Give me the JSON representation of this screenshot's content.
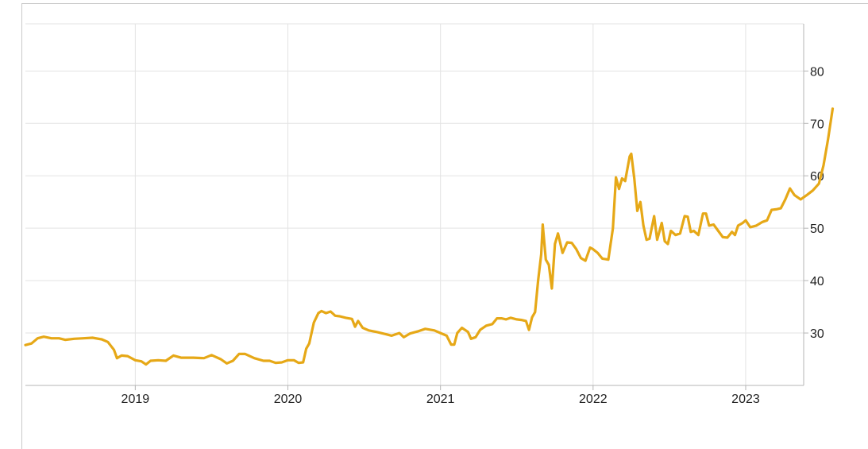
{
  "chart_data": {
    "type": "line",
    "title": "",
    "xlabel": "",
    "ylabel": "",
    "xlim": [
      2018.28,
      2023.38
    ],
    "ylim": [
      20,
      89
    ],
    "x_ticks": [
      2019,
      2020,
      2021,
      2022,
      2023
    ],
    "x_tick_labels": [
      "2019",
      "2020",
      "2021",
      "2022",
      "2023"
    ],
    "y_ticks": [
      30,
      40,
      50,
      60,
      70,
      80
    ],
    "y_tick_labels": [
      "30",
      "40",
      "50",
      "60",
      "70",
      "80"
    ],
    "y_axis_position": "right",
    "grid": true,
    "legend": "none",
    "colors": {
      "line": "#e6a817",
      "grid": "#e3e3e3",
      "axis": "#b5b5b5",
      "frame": "#c9c9c9"
    },
    "series": [
      {
        "values": [
          [
            2018.28,
            27.7
          ],
          [
            2018.32,
            28.0
          ],
          [
            2018.36,
            29.0
          ],
          [
            2018.4,
            29.3
          ],
          [
            2018.45,
            29.0
          ],
          [
            2018.5,
            29.0
          ],
          [
            2018.54,
            28.7
          ],
          [
            2018.6,
            28.9
          ],
          [
            2018.66,
            29.0
          ],
          [
            2018.72,
            29.1
          ],
          [
            2018.78,
            28.8
          ],
          [
            2018.82,
            28.3
          ],
          [
            2018.86,
            26.8
          ],
          [
            2018.88,
            25.2
          ],
          [
            2018.91,
            25.7
          ],
          [
            2018.95,
            25.6
          ],
          [
            2019.0,
            24.8
          ],
          [
            2019.04,
            24.6
          ],
          [
            2019.07,
            24.0
          ],
          [
            2019.1,
            24.7
          ],
          [
            2019.15,
            24.8
          ],
          [
            2019.2,
            24.7
          ],
          [
            2019.25,
            25.7
          ],
          [
            2019.3,
            25.3
          ],
          [
            2019.38,
            25.3
          ],
          [
            2019.45,
            25.2
          ],
          [
            2019.5,
            25.8
          ],
          [
            2019.56,
            25.0
          ],
          [
            2019.6,
            24.2
          ],
          [
            2019.64,
            24.7
          ],
          [
            2019.68,
            26.0
          ],
          [
            2019.72,
            26.0
          ],
          [
            2019.78,
            25.2
          ],
          [
            2019.84,
            24.7
          ],
          [
            2019.88,
            24.7
          ],
          [
            2019.92,
            24.3
          ],
          [
            2019.96,
            24.4
          ],
          [
            2020.0,
            24.8
          ],
          [
            2020.04,
            24.8
          ],
          [
            2020.07,
            24.3
          ],
          [
            2020.1,
            24.4
          ],
          [
            2020.12,
            27.0
          ],
          [
            2020.14,
            28.0
          ],
          [
            2020.17,
            32.0
          ],
          [
            2020.2,
            33.8
          ],
          [
            2020.22,
            34.2
          ],
          [
            2020.25,
            33.8
          ],
          [
            2020.28,
            34.1
          ],
          [
            2020.31,
            33.3
          ],
          [
            2020.34,
            33.2
          ],
          [
            2020.38,
            32.9
          ],
          [
            2020.42,
            32.7
          ],
          [
            2020.44,
            31.2
          ],
          [
            2020.46,
            32.3
          ],
          [
            2020.49,
            31.0
          ],
          [
            2020.53,
            30.5
          ],
          [
            2020.58,
            30.2
          ],
          [
            2020.64,
            29.8
          ],
          [
            2020.68,
            29.5
          ],
          [
            2020.73,
            30.0
          ],
          [
            2020.76,
            29.2
          ],
          [
            2020.8,
            29.9
          ],
          [
            2020.85,
            30.3
          ],
          [
            2020.9,
            30.8
          ],
          [
            2020.96,
            30.5
          ],
          [
            2021.0,
            30.0
          ],
          [
            2021.04,
            29.5
          ],
          [
            2021.07,
            27.8
          ],
          [
            2021.09,
            27.8
          ],
          [
            2021.11,
            30.0
          ],
          [
            2021.14,
            31.0
          ],
          [
            2021.18,
            30.2
          ],
          [
            2021.2,
            28.9
          ],
          [
            2021.23,
            29.2
          ],
          [
            2021.26,
            30.6
          ],
          [
            2021.3,
            31.4
          ],
          [
            2021.34,
            31.7
          ],
          [
            2021.37,
            32.8
          ],
          [
            2021.4,
            32.8
          ],
          [
            2021.43,
            32.6
          ],
          [
            2021.46,
            32.9
          ],
          [
            2021.5,
            32.6
          ],
          [
            2021.53,
            32.5
          ],
          [
            2021.56,
            32.3
          ],
          [
            2021.58,
            30.6
          ],
          [
            2021.6,
            33.0
          ],
          [
            2021.62,
            34.0
          ],
          [
            2021.64,
            40.0
          ],
          [
            2021.66,
            45.0
          ],
          [
            2021.67,
            50.7
          ],
          [
            2021.69,
            44.0
          ],
          [
            2021.71,
            43.0
          ],
          [
            2021.73,
            38.5
          ],
          [
            2021.75,
            47.0
          ],
          [
            2021.77,
            49.0
          ],
          [
            2021.8,
            45.3
          ],
          [
            2021.83,
            47.3
          ],
          [
            2021.86,
            47.2
          ],
          [
            2021.89,
            46.0
          ],
          [
            2021.92,
            44.3
          ],
          [
            2021.95,
            43.8
          ],
          [
            2021.98,
            46.3
          ],
          [
            2022.0,
            46.0
          ],
          [
            2022.03,
            45.3
          ],
          [
            2022.06,
            44.2
          ],
          [
            2022.1,
            44.0
          ],
          [
            2022.13,
            50.0
          ],
          [
            2022.15,
            59.7
          ],
          [
            2022.17,
            57.5
          ],
          [
            2022.19,
            59.5
          ],
          [
            2022.21,
            59.0
          ],
          [
            2022.24,
            63.7
          ],
          [
            2022.25,
            64.2
          ],
          [
            2022.27,
            59.5
          ],
          [
            2022.29,
            53.3
          ],
          [
            2022.31,
            55.0
          ],
          [
            2022.33,
            50.5
          ],
          [
            2022.35,
            47.8
          ],
          [
            2022.37,
            48.0
          ],
          [
            2022.4,
            52.3
          ],
          [
            2022.42,
            47.8
          ],
          [
            2022.45,
            51.0
          ],
          [
            2022.47,
            47.5
          ],
          [
            2022.49,
            47.0
          ],
          [
            2022.51,
            49.5
          ],
          [
            2022.54,
            48.7
          ],
          [
            2022.57,
            49.0
          ],
          [
            2022.6,
            52.3
          ],
          [
            2022.62,
            52.2
          ],
          [
            2022.64,
            49.3
          ],
          [
            2022.66,
            49.5
          ],
          [
            2022.69,
            48.7
          ],
          [
            2022.72,
            52.8
          ],
          [
            2022.74,
            52.8
          ],
          [
            2022.76,
            50.5
          ],
          [
            2022.79,
            50.7
          ],
          [
            2022.82,
            49.5
          ],
          [
            2022.85,
            48.3
          ],
          [
            2022.88,
            48.2
          ],
          [
            2022.91,
            49.3
          ],
          [
            2022.93,
            48.7
          ],
          [
            2022.95,
            50.5
          ],
          [
            2022.98,
            51.0
          ],
          [
            2023.0,
            51.5
          ],
          [
            2023.03,
            50.2
          ],
          [
            2023.07,
            50.5
          ],
          [
            2023.11,
            51.2
          ],
          [
            2023.14,
            51.5
          ],
          [
            2023.17,
            53.5
          ],
          [
            2023.2,
            53.6
          ],
          [
            2023.23,
            53.8
          ],
          [
            2023.26,
            55.5
          ],
          [
            2023.29,
            57.6
          ],
          [
            2023.32,
            56.3
          ],
          [
            2023.36,
            55.5
          ],
          [
            2023.4,
            56.3
          ],
          [
            2023.44,
            57.2
          ],
          [
            2023.48,
            58.5
          ],
          [
            2023.51,
            62.0
          ],
          [
            2023.54,
            67.0
          ],
          [
            2023.57,
            72.8
          ]
        ]
      }
    ]
  }
}
